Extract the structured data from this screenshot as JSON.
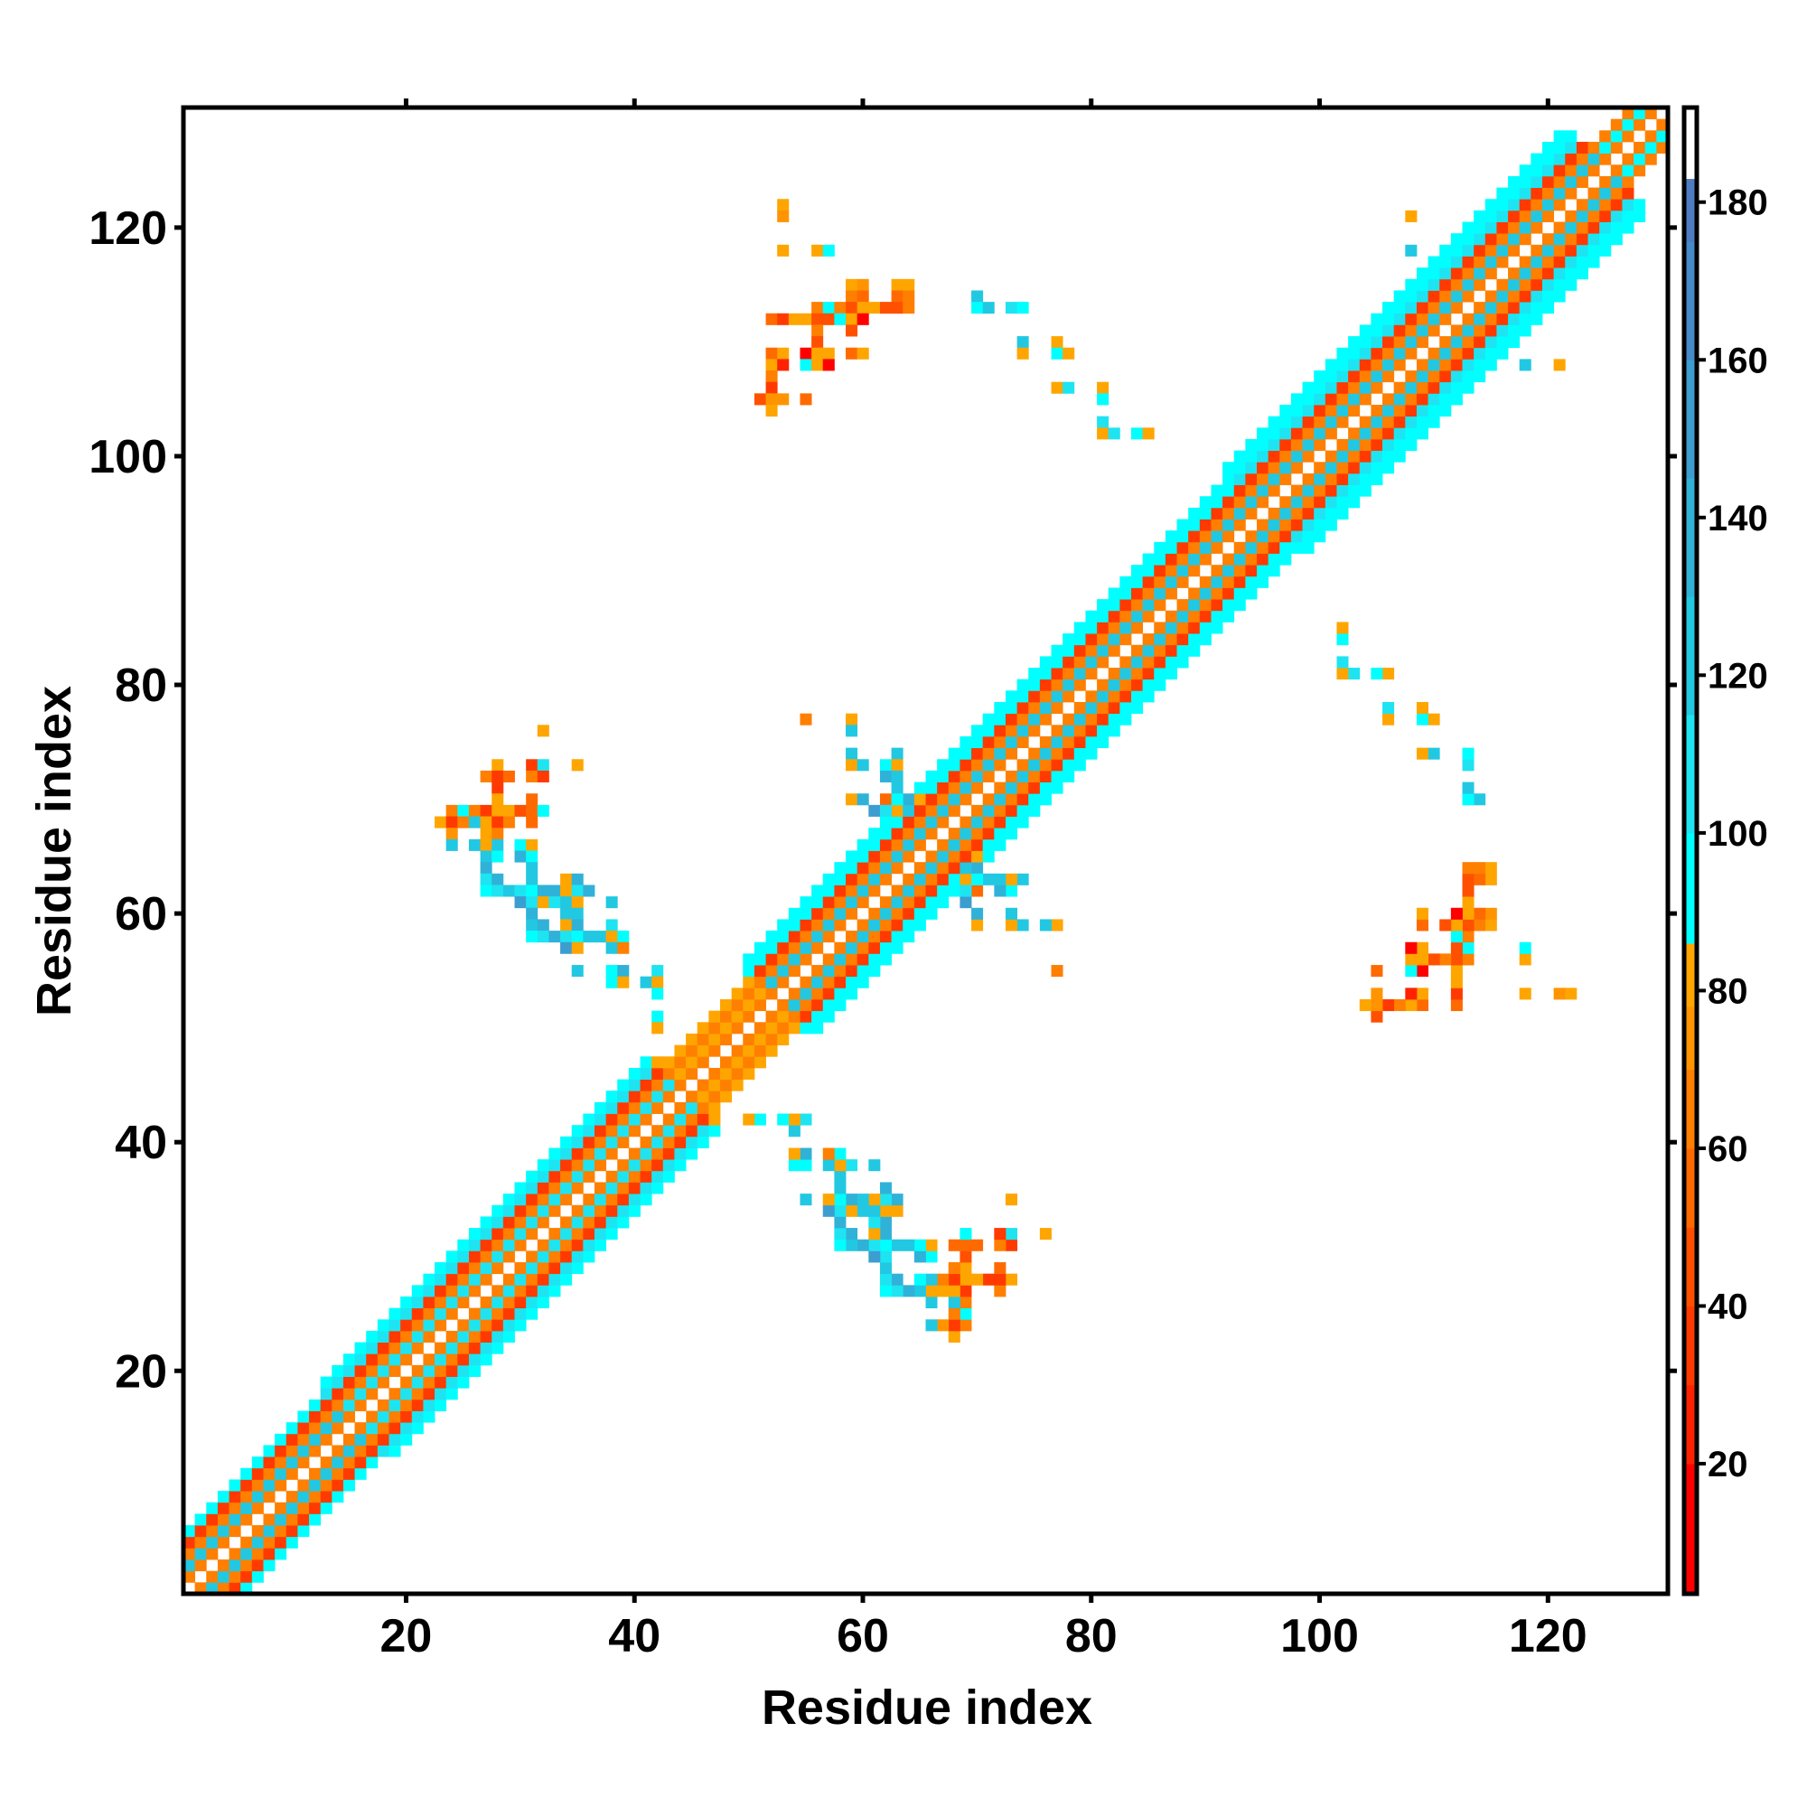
{
  "chart_data": {
    "type": "heatmap",
    "title": "",
    "xlabel": "Residue index",
    "ylabel": "Residue index",
    "xlim": [
      0.5,
      130.5
    ],
    "ylim": [
      0.5,
      130.5
    ],
    "n_residues": 130,
    "xticks": [
      20,
      40,
      60,
      80,
      100,
      120
    ],
    "yticks": [
      20,
      40,
      60,
      80,
      100,
      120
    ],
    "symmetric": true,
    "colorbar": {
      "range": [
        3.5,
        192
      ],
      "ticks": [
        20,
        40,
        60,
        80,
        100,
        120,
        140,
        160,
        180
      ],
      "steps": [
        {
          "max": 20,
          "color": "#ff0000"
        },
        {
          "max": 30,
          "color": "#ff2200"
        },
        {
          "max": 40,
          "color": "#ff3a00"
        },
        {
          "max": 50,
          "color": "#ff5000"
        },
        {
          "max": 60,
          "color": "#ff6a00"
        },
        {
          "max": 70,
          "color": "#ff7f00"
        },
        {
          "max": 78,
          "color": "#ff9400"
        },
        {
          "max": 86,
          "color": "#ffa500"
        },
        {
          "max": 100,
          "color": "#00ffff"
        },
        {
          "max": 115,
          "color": "#1ee4f2"
        },
        {
          "max": 130,
          "color": "#22c8e2"
        },
        {
          "max": 145,
          "color": "#30b2d8"
        },
        {
          "max": 160,
          "color": "#3c9ed0"
        },
        {
          "max": 175,
          "color": "#468ac8"
        },
        {
          "max": 183,
          "color": "#4d7cc0"
        },
        {
          "max": 192,
          "color": "#ffffff"
        }
      ]
    },
    "diagonal_band": [
      {
        "from": 1,
        "to": 15,
        "offset_values": [
          65,
          120,
          65,
          40,
          95
        ]
      },
      {
        "from": 16,
        "to": 44,
        "offset_values": [
          65,
          115,
          65,
          40,
          110,
          95
        ]
      },
      {
        "from": 45,
        "to": 52,
        "offset_values": [
          65,
          80,
          70,
          80
        ]
      },
      {
        "from": 53,
        "to": 66,
        "offset_values": [
          65,
          120,
          65,
          40,
          100,
          95
        ]
      },
      {
        "from": 67,
        "to": 95,
        "offset_values": [
          65,
          120,
          65,
          40,
          100,
          95
        ]
      },
      {
        "from": 96,
        "to": 125,
        "offset_values": [
          65,
          120,
          65,
          40,
          110,
          95,
          95
        ]
      },
      {
        "from": 126,
        "to": 130,
        "offset_values": [
          65,
          95,
          65
        ]
      }
    ],
    "contacts": [
      [
        53,
        122,
        80
      ],
      [
        53,
        121,
        72
      ],
      [
        53,
        118,
        80
      ],
      [
        56,
        118,
        80
      ],
      [
        57,
        118,
        95
      ],
      [
        59,
        115,
        80
      ],
      [
        60,
        115,
        75
      ],
      [
        63,
        115,
        80
      ],
      [
        64,
        115,
        80
      ],
      [
        59,
        114,
        65
      ],
      [
        60,
        114,
        55
      ],
      [
        63,
        114,
        55
      ],
      [
        64,
        114,
        70
      ],
      [
        56,
        113,
        70
      ],
      [
        57,
        113,
        95
      ],
      [
        58,
        113,
        62
      ],
      [
        59,
        113,
        45
      ],
      [
        60,
        113,
        80
      ],
      [
        61,
        113,
        80
      ],
      [
        62,
        113,
        45
      ],
      [
        63,
        113,
        45
      ],
      [
        64,
        113,
        70
      ],
      [
        52,
        112,
        55
      ],
      [
        53,
        112,
        40
      ],
      [
        54,
        112,
        80
      ],
      [
        55,
        112,
        80
      ],
      [
        56,
        112,
        45
      ],
      [
        57,
        112,
        45
      ],
      [
        58,
        112,
        95
      ],
      [
        59,
        112,
        80
      ],
      [
        60,
        112,
        20
      ],
      [
        56,
        111,
        65
      ],
      [
        59,
        111,
        45
      ],
      [
        56,
        110,
        45
      ],
      [
        52,
        109,
        60
      ],
      [
        53,
        109,
        80
      ],
      [
        55,
        109,
        20
      ],
      [
        56,
        109,
        80
      ],
      [
        57,
        109,
        80
      ],
      [
        59,
        109,
        60
      ],
      [
        60,
        109,
        80
      ],
      [
        52,
        108,
        80
      ],
      [
        53,
        108,
        25
      ],
      [
        55,
        108,
        95
      ],
      [
        56,
        108,
        80
      ],
      [
        57,
        108,
        20
      ],
      [
        52,
        107,
        70
      ],
      [
        52,
        106,
        40
      ],
      [
        51,
        105,
        45
      ],
      [
        52,
        105,
        75
      ],
      [
        53,
        105,
        75
      ],
      [
        55,
        105,
        55
      ],
      [
        52,
        104,
        80
      ],
      [
        70,
        114,
        120
      ],
      [
        70,
        113,
        95
      ],
      [
        71,
        113,
        120
      ],
      [
        73,
        113,
        115
      ],
      [
        74,
        113,
        95
      ],
      [
        74,
        110,
        125
      ],
      [
        77,
        110,
        80
      ],
      [
        74,
        109,
        80
      ],
      [
        77,
        109,
        95
      ],
      [
        78,
        109,
        80
      ],
      [
        77,
        106,
        80
      ],
      [
        78,
        106,
        110
      ],
      [
        81,
        106,
        80
      ],
      [
        81,
        105,
        95
      ],
      [
        81,
        103,
        115
      ],
      [
        81,
        102,
        80
      ],
      [
        82,
        102,
        110
      ],
      [
        84,
        102,
        95
      ],
      [
        85,
        102,
        80
      ],
      [
        108,
        121,
        80
      ],
      [
        108,
        118,
        120
      ],
      [
        32,
        76,
        80
      ],
      [
        28,
        73,
        80
      ],
      [
        31,
        73,
        40
      ],
      [
        32,
        73,
        110
      ],
      [
        35,
        73,
        80
      ],
      [
        27,
        72,
        70
      ],
      [
        28,
        72,
        40
      ],
      [
        29,
        72,
        60
      ],
      [
        31,
        72,
        65
      ],
      [
        32,
        72,
        40
      ],
      [
        28,
        71,
        40
      ],
      [
        28,
        70,
        80
      ],
      [
        31,
        70,
        55
      ],
      [
        24,
        69,
        70
      ],
      [
        25,
        69,
        95
      ],
      [
        26,
        69,
        70
      ],
      [
        27,
        69,
        40
      ],
      [
        28,
        69,
        80
      ],
      [
        29,
        69,
        80
      ],
      [
        30,
        69,
        45
      ],
      [
        31,
        69,
        60
      ],
      [
        32,
        69,
        100
      ],
      [
        23,
        68,
        80
      ],
      [
        24,
        68,
        40
      ],
      [
        25,
        68,
        70
      ],
      [
        26,
        68,
        120
      ],
      [
        27,
        68,
        80
      ],
      [
        28,
        68,
        35
      ],
      [
        29,
        68,
        70
      ],
      [
        31,
        68,
        60
      ],
      [
        24,
        67,
        75
      ],
      [
        27,
        67,
        80
      ],
      [
        28,
        67,
        65
      ],
      [
        24,
        66,
        120
      ],
      [
        26,
        66,
        120
      ],
      [
        27,
        66,
        80
      ],
      [
        28,
        66,
        120
      ],
      [
        30,
        66,
        95
      ],
      [
        31,
        66,
        80
      ],
      [
        27,
        65,
        125
      ],
      [
        28,
        65,
        95
      ],
      [
        30,
        65,
        140
      ],
      [
        31,
        65,
        95
      ],
      [
        27,
        64,
        135
      ],
      [
        31,
        64,
        125
      ],
      [
        27,
        63,
        115
      ],
      [
        28,
        63,
        140
      ],
      [
        31,
        63,
        125
      ],
      [
        34,
        63,
        80
      ],
      [
        35,
        63,
        140
      ],
      [
        27,
        62,
        95
      ],
      [
        28,
        62,
        115
      ],
      [
        29,
        62,
        125
      ],
      [
        30,
        62,
        110
      ],
      [
        31,
        62,
        100
      ],
      [
        32,
        62,
        135
      ],
      [
        33,
        62,
        135
      ],
      [
        34,
        62,
        80
      ],
      [
        35,
        62,
        110
      ],
      [
        36,
        62,
        140
      ],
      [
        30,
        61,
        160
      ],
      [
        31,
        61,
        115
      ],
      [
        32,
        61,
        80
      ],
      [
        33,
        61,
        115
      ],
      [
        34,
        61,
        130
      ],
      [
        35,
        61,
        80
      ],
      [
        38,
        61,
        120
      ],
      [
        31,
        60,
        135
      ],
      [
        34,
        60,
        130
      ],
      [
        35,
        60,
        125
      ],
      [
        31,
        59,
        125
      ],
      [
        32,
        59,
        140
      ],
      [
        34,
        59,
        80
      ],
      [
        35,
        59,
        135
      ],
      [
        38,
        59,
        115
      ],
      [
        31,
        58,
        95
      ],
      [
        32,
        58,
        115
      ],
      [
        33,
        58,
        140
      ],
      [
        34,
        58,
        110
      ],
      [
        35,
        58,
        95
      ],
      [
        36,
        58,
        130
      ],
      [
        37,
        58,
        130
      ],
      [
        38,
        58,
        80
      ],
      [
        39,
        58,
        95
      ],
      [
        34,
        57,
        160
      ],
      [
        35,
        57,
        80
      ],
      [
        38,
        57,
        125
      ],
      [
        39,
        57,
        70
      ],
      [
        35,
        55,
        125
      ],
      [
        38,
        55,
        95
      ],
      [
        39,
        55,
        145
      ],
      [
        42,
        55,
        115
      ],
      [
        38,
        54,
        95
      ],
      [
        39,
        54,
        80
      ],
      [
        41,
        54,
        125
      ],
      [
        42,
        54,
        80
      ],
      [
        42,
        51,
        95
      ],
      [
        42,
        50,
        80
      ],
      [
        42,
        47,
        80
      ],
      [
        42,
        53,
        95
      ],
      [
        55,
        77,
        75
      ],
      [
        59,
        77,
        80
      ],
      [
        59,
        76,
        100
      ],
      [
        59,
        74,
        120
      ],
      [
        63,
        74,
        120
      ],
      [
        59,
        73,
        80
      ],
      [
        60,
        73,
        125
      ],
      [
        62,
        73,
        95
      ],
      [
        63,
        73,
        80
      ],
      [
        62,
        72,
        145
      ],
      [
        63,
        72,
        120
      ],
      [
        63,
        71,
        130
      ],
      [
        59,
        70,
        80
      ],
      [
        60,
        70,
        140
      ],
      [
        62,
        70,
        60
      ],
      [
        63,
        70,
        95
      ],
      [
        64,
        70,
        135
      ],
      [
        65,
        70,
        80
      ],
      [
        61,
        69,
        160
      ],
      [
        62,
        69,
        115
      ],
      [
        63,
        69,
        80
      ],
      [
        64,
        69,
        130
      ],
      [
        63,
        71,
        130
      ],
      [
        62,
        73,
        95
      ],
      [
        59,
        76,
        120
      ],
      [
        59,
        77,
        80
      ],
      [
        55,
        77,
        70
      ],
      [
        60,
        73,
        130
      ],
      [
        62,
        72,
        140
      ],
      [
        61,
        69,
        160
      ]
    ]
  }
}
